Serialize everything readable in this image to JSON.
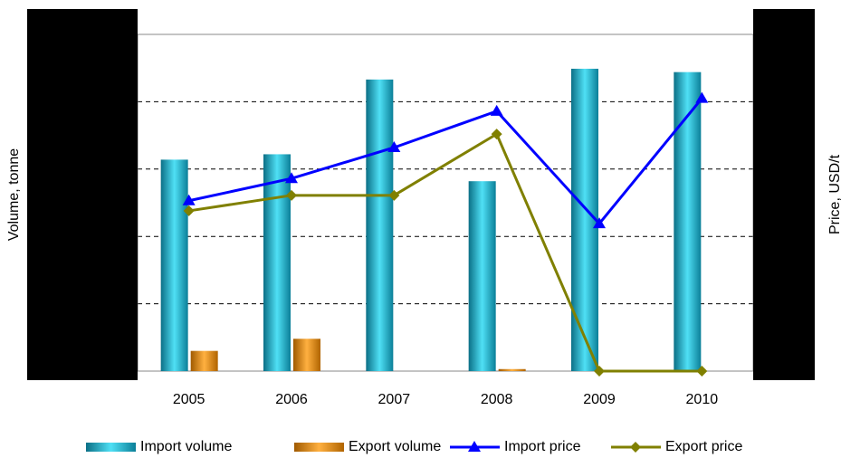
{
  "chart_data": {
    "type": "bar_line",
    "y_label": "Volume,  tonne",
    "y2_label": "Price, USD/t",
    "categories": [
      "2005",
      "2006",
      "2007",
      "2008",
      "2009",
      "2010"
    ],
    "series": [
      {
        "name": "Import volume",
        "kind": "bar",
        "color": "#1aa8c4",
        "values": [
          3.14,
          3.22,
          4.33,
          2.82,
          4.49,
          4.44
        ]
      },
      {
        "name": "Export volume",
        "kind": "bar",
        "color": "#e08a00",
        "values": [
          0.3,
          0.48,
          0,
          0.03,
          0,
          0
        ]
      },
      {
        "name": "Import price",
        "kind": "line",
        "axis": "y2",
        "marker": "triangle",
        "color": "#0000ff",
        "values": [
          2.53,
          2.86,
          3.32,
          3.86,
          2.19,
          4.05
        ]
      },
      {
        "name": "Export price",
        "kind": "line",
        "axis": "y2",
        "marker": "diamond",
        "color": "#808000",
        "values": [
          2.38,
          2.61,
          2.61,
          3.52,
          0,
          0
        ]
      }
    ],
    "ylim": [
      0,
      5
    ],
    "yticks": [
      0,
      1,
      2,
      3,
      4,
      5
    ],
    "y2lim": [
      0,
      5
    ],
    "y2ticks": [
      0,
      1,
      2,
      3,
      4,
      5
    ],
    "grid": true
  }
}
